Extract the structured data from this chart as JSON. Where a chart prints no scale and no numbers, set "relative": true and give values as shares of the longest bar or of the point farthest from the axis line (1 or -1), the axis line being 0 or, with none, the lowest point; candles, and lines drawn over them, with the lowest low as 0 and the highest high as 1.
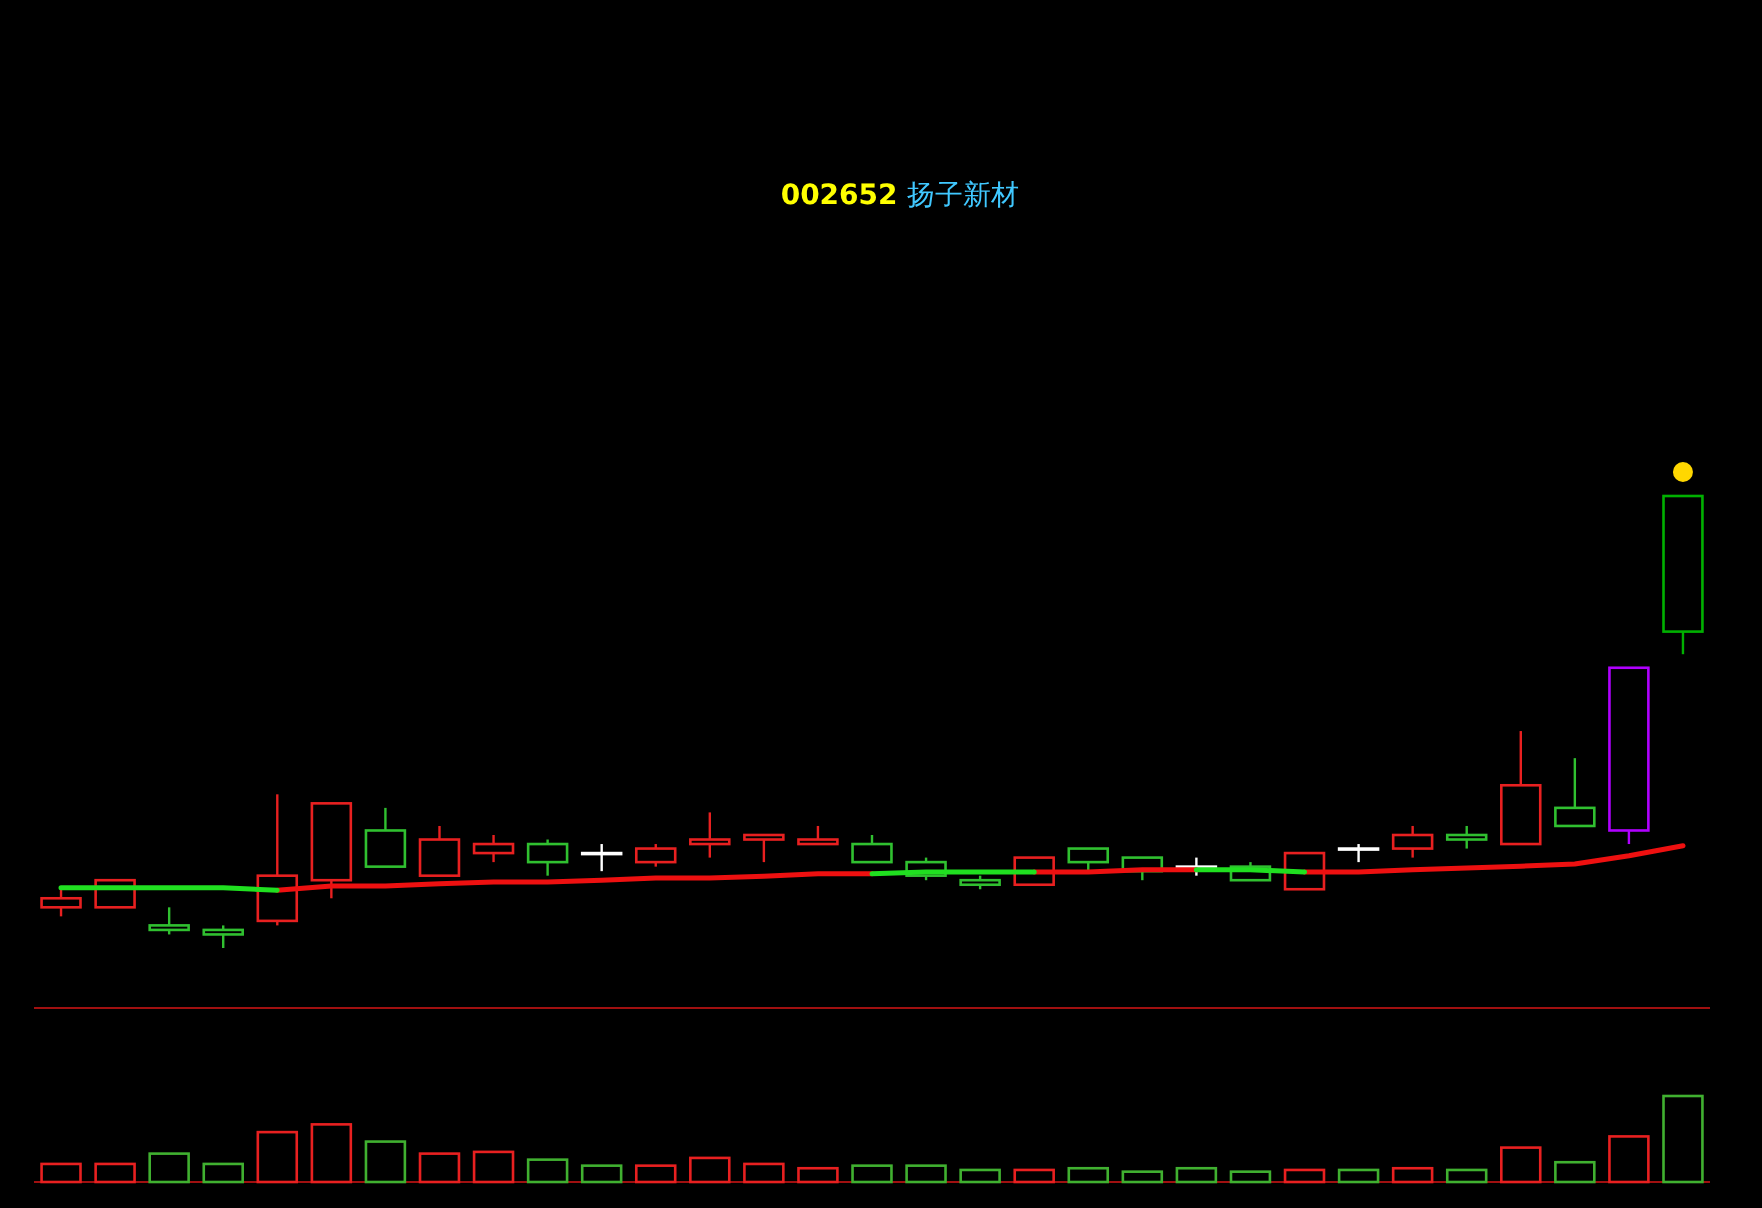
{
  "chart_data": [
    {
      "type": "candlestick",
      "title": "002652 扬子新材",
      "relative": true,
      "categories": [
        null,
        null,
        null,
        null,
        null,
        null,
        null,
        null,
        null,
        null,
        null,
        null,
        null,
        null,
        null,
        null,
        null,
        null,
        null,
        null,
        null,
        null,
        null,
        null,
        null,
        null,
        null,
        null,
        null,
        null,
        null
      ],
      "ohlc": [
        [
          0.09,
          0.13,
          0.07,
          0.11
        ],
        [
          0.09,
          0.15,
          0.09,
          0.15
        ],
        [
          0.05,
          0.09,
          0.03,
          0.04
        ],
        [
          0.04,
          0.05,
          0,
          0.03
        ],
        [
          0.06,
          0.34,
          0.05,
          0.16
        ],
        [
          0.15,
          0.32,
          0.11,
          0.32
        ],
        [
          0.26,
          0.31,
          0.18,
          0.18
        ],
        [
          0.16,
          0.27,
          0.16,
          0.24
        ],
        [
          0.21,
          0.25,
          0.19,
          0.23
        ],
        [
          0.23,
          0.24,
          0.16,
          0.19
        ],
        [
          0.21,
          0.23,
          0.17,
          0.21
        ],
        [
          0.19,
          0.23,
          0.18,
          0.22
        ],
        [
          0.23,
          0.3,
          0.2,
          0.24
        ],
        [
          0.24,
          0.25,
          0.19,
          0.25
        ],
        [
          0.23,
          0.27,
          0.23,
          0.24
        ],
        [
          0.23,
          0.25,
          0.19,
          0.19
        ],
        [
          0.19,
          0.2,
          0.15,
          0.16
        ],
        [
          0.15,
          0.16,
          0.13,
          0.14
        ],
        [
          0.14,
          0.2,
          0.14,
          0.2
        ],
        [
          0.22,
          0.22,
          0.17,
          0.19
        ],
        [
          0.2,
          0.2,
          0.15,
          0.17
        ],
        [
          0.18,
          0.2,
          0.16,
          0.18
        ],
        [
          0.18,
          0.19,
          0.15,
          0.15
        ],
        [
          0.13,
          0.21,
          0.13,
          0.21
        ],
        [
          0.22,
          0.23,
          0.19,
          0.22
        ],
        [
          0.22,
          0.27,
          0.2,
          0.25
        ],
        [
          0.25,
          0.27,
          0.22,
          0.24
        ],
        [
          0.23,
          0.48,
          0.23,
          0.36
        ],
        [
          0.31,
          0.42,
          0.27,
          0.27
        ],
        [
          0.26,
          0.62,
          0.23,
          0.62
        ],
        [
          1.0,
          1.0,
          0.65,
          0.7
        ]
      ],
      "colors": [
        "#e82020",
        "#e82020",
        "#30c030",
        "#30c030",
        "#e82020",
        "#e82020",
        "#30c030",
        "#e82020",
        "#e82020",
        "#30c030",
        "#ffffff",
        "#e82020",
        "#e82020",
        "#e82020",
        "#e82020",
        "#30c030",
        "#30c030",
        "#30c030",
        "#e82020",
        "#30c030",
        "#30c030",
        "#ffffff",
        "#30c030",
        "#e82020",
        "#ffffff",
        "#e82020",
        "#30c030",
        "#e82020",
        "#30c030",
        "#b000ff",
        "#00b000"
      ],
      "series": [
        {
          "type": "line",
          "color": "#ee1010",
          "values": [
            null,
            null,
            null,
            null,
            0.128,
            0.137,
            0.137,
            0.142,
            0.146,
            0.146,
            0.15,
            0.155,
            0.155,
            0.159,
            0.164,
            0.164,
            null,
            null,
            0.168,
            0.168,
            0.173,
            0.173,
            null,
            0.168,
            0.168,
            0.173,
            0.177,
            0.181,
            0.186,
            0.204,
            0.226
          ]
        },
        {
          "type": "line",
          "color": "#20e020",
          "values": [
            0.133,
            0.133,
            0.133,
            0.133,
            0.128,
            null,
            null,
            null,
            null,
            null,
            null,
            null,
            null,
            null,
            null,
            0.164,
            0.168,
            0.168,
            0.168,
            null,
            null,
            0.173,
            0.173,
            0.168,
            null,
            null,
            null,
            null,
            null,
            null,
            null
          ]
        }
      ]
    },
    {
      "type": "bar",
      "relative": true,
      "categories": [
        null,
        null,
        null,
        null,
        null,
        null,
        null,
        null,
        null,
        null,
        null,
        null,
        null,
        null,
        null,
        null,
        null,
        null,
        null,
        null,
        null,
        null,
        null,
        null,
        null,
        null,
        null,
        null,
        null,
        null,
        null
      ],
      "values": [
        0.21,
        0.21,
        0.33,
        0.21,
        0.58,
        0.67,
        0.47,
        0.33,
        0.35,
        0.26,
        0.19,
        0.19,
        0.28,
        0.21,
        0.16,
        0.19,
        0.19,
        0.14,
        0.14,
        0.16,
        0.12,
        0.16,
        0.12,
        0.14,
        0.14,
        0.16,
        0.14,
        0.4,
        0.23,
        0.53,
        1
      ],
      "colors": [
        "#e82020",
        "#e82020",
        "#40b030",
        "#40b030",
        "#e82020",
        "#e82020",
        "#40b030",
        "#e82020",
        "#e82020",
        "#40b030",
        "#40b030",
        "#e82020",
        "#e82020",
        "#e82020",
        "#e82020",
        "#40b030",
        "#40b030",
        "#40b030",
        "#e82020",
        "#40b030",
        "#40b030",
        "#40b030",
        "#40b030",
        "#e82020",
        "#40b030",
        "#e82020",
        "#40b030",
        "#e82020",
        "#40b030",
        "#e82020",
        "#40b030"
      ]
    }
  ]
}
